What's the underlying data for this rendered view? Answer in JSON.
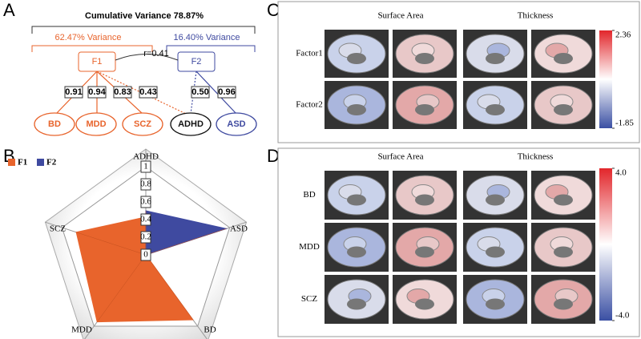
{
  "panel_labels": [
    "A",
    "B",
    "C",
    "D"
  ],
  "panel_a": {
    "title": "Cumulative Variance 78.87%",
    "f1_variance": "62.47% Variance",
    "f2_variance": "16.40% Variance",
    "factors": [
      "F1",
      "F2"
    ],
    "correlation": "r=0.41",
    "loadings": [
      "0.91",
      "0.94",
      "0.83",
      "0.43",
      "0.50",
      "0.96"
    ],
    "disorders": [
      "BD",
      "MDD",
      "SCZ",
      "ADHD",
      "ASD"
    ]
  },
  "chart_data": {
    "type": "radar",
    "categories": [
      "ADHD",
      "ASD",
      "BD",
      "MDD",
      "SCZ"
    ],
    "series": [
      {
        "name": "F1",
        "color": "#e8642c",
        "values": [
          0.43,
          0,
          0.91,
          0.94,
          0.83
        ]
      },
      {
        "name": "F2",
        "color": "#3f4aa0",
        "values": [
          0.5,
          0.96,
          0,
          0,
          0
        ]
      }
    ],
    "ylim": [
      0,
      1
    ],
    "yticks": [
      0,
      0.2,
      0.4,
      0.6,
      0.8,
      1
    ],
    "legend": "top-left"
  },
  "panel_c": {
    "columns": [
      "Surface Area",
      "Thickness"
    ],
    "rows": [
      "Factor1",
      "Factor2"
    ],
    "clim": [
      -1.85,
      2.36
    ],
    "cticks": [
      2.36,
      -1.85
    ]
  },
  "panel_d": {
    "columns": [
      "Surface Area",
      "Thickness"
    ],
    "rows": [
      "BD",
      "MDD",
      "SCZ"
    ],
    "clim": [
      -4,
      4
    ],
    "cticks": [
      {
        "value": 4,
        "label": "4.0"
      },
      {
        "value": -4,
        "label": "-4.0"
      }
    ]
  }
}
